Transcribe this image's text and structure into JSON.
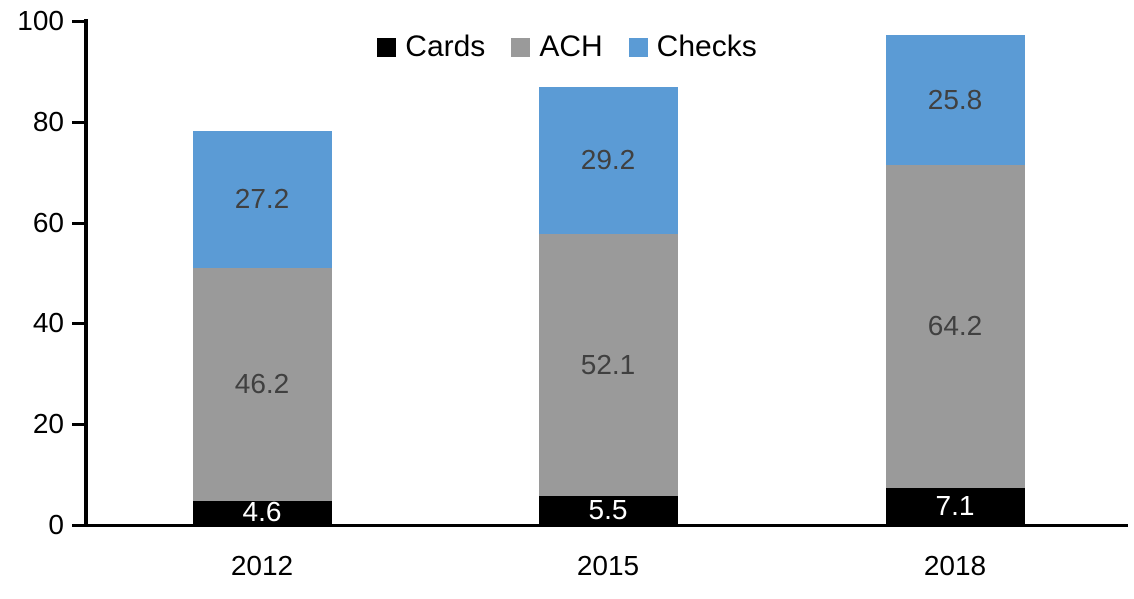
{
  "chart_data": {
    "type": "bar",
    "stacked": true,
    "title": "",
    "xlabel": "",
    "ylabel": "",
    "categories": [
      "2012",
      "2015",
      "2018"
    ],
    "series": [
      {
        "name": "Cards",
        "color": "#000000",
        "label_color": "#ffffff",
        "values": [
          4.6,
          5.5,
          7.1
        ],
        "labels": [
          "4.6",
          "5.5",
          "7.1"
        ]
      },
      {
        "name": "ACH",
        "color": "#9a9a9a",
        "label_color": "#404040",
        "values": [
          46.2,
          52.1,
          64.2
        ],
        "labels": [
          "46.2",
          "52.1",
          "64.2"
        ]
      },
      {
        "name": "Checks",
        "color": "#5b9bd5",
        "label_color": "#404040",
        "values": [
          27.2,
          29.2,
          25.8
        ],
        "labels": [
          "27.2",
          "29.2",
          "25.8"
        ]
      }
    ],
    "stack_totals": [
      78.0,
      86.8,
      97.1
    ],
    "ylim": [
      0,
      100
    ],
    "y_ticks": [
      "0",
      "20",
      "40",
      "60",
      "80",
      "100"
    ],
    "grid": false,
    "data_labels": true,
    "legend_position": "top-center",
    "axis_color": "#000000"
  }
}
